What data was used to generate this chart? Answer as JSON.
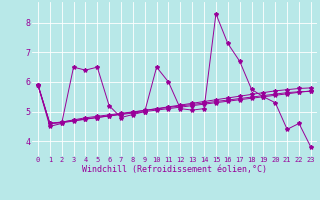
{
  "xlabel": "Windchill (Refroidissement éolien,°C)",
  "background_color": "#b8e8e8",
  "grid_color": "#ffffff",
  "line_color": "#990099",
  "xlim": [
    -0.5,
    23.5
  ],
  "ylim": [
    3.5,
    8.7
  ],
  "yticks": [
    4,
    5,
    6,
    7,
    8
  ],
  "xticks": [
    0,
    1,
    2,
    3,
    4,
    5,
    6,
    7,
    8,
    9,
    10,
    11,
    12,
    13,
    14,
    15,
    16,
    17,
    18,
    19,
    20,
    21,
    22,
    23
  ],
  "series": [
    [
      5.9,
      4.5,
      4.6,
      6.5,
      6.4,
      6.5,
      5.2,
      4.8,
      4.9,
      5.0,
      6.5,
      6.0,
      5.1,
      5.05,
      5.1,
      8.3,
      7.3,
      6.7,
      5.75,
      5.5,
      5.3,
      4.4,
      4.6,
      3.8
    ],
    [
      5.9,
      4.6,
      4.65,
      4.7,
      4.75,
      4.8,
      4.85,
      4.9,
      4.95,
      5.0,
      5.05,
      5.1,
      5.15,
      5.2,
      5.25,
      5.3,
      5.35,
      5.4,
      5.45,
      5.5,
      5.55,
      5.6,
      5.65,
      5.7
    ],
    [
      5.9,
      4.6,
      4.62,
      4.68,
      4.74,
      4.8,
      4.86,
      4.92,
      4.98,
      5.04,
      5.1,
      5.16,
      5.22,
      5.28,
      5.34,
      5.4,
      5.46,
      5.52,
      5.58,
      5.64,
      5.7,
      5.74,
      5.78,
      5.8
    ],
    [
      5.9,
      4.6,
      4.64,
      4.72,
      4.79,
      4.84,
      4.89,
      4.94,
      4.99,
      5.04,
      5.09,
      5.14,
      5.19,
      5.24,
      5.29,
      5.34,
      5.39,
      5.44,
      5.49,
      5.54,
      5.59,
      5.64,
      5.67,
      5.68
    ]
  ],
  "marker": "*",
  "marker_size": 3,
  "line_width": 0.7,
  "tick_fontsize": 5,
  "label_fontsize": 5
}
